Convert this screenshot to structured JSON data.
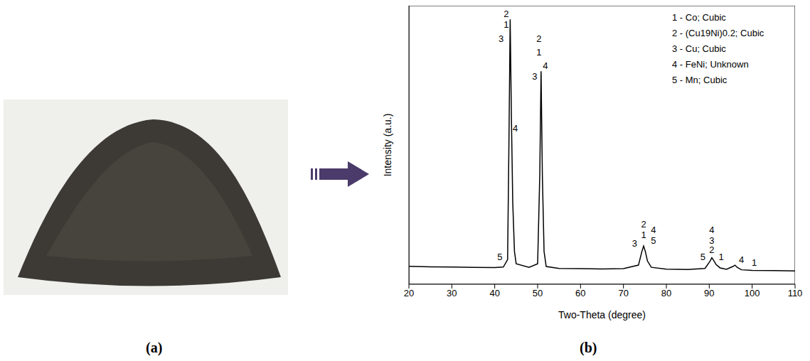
{
  "panel_labels": [
    "(a)",
    "(b)"
  ],
  "chart_data": {
    "type": "line",
    "x_label": "Two-Theta (degree)",
    "y_label": "Intensity (a.u.)",
    "x": [
      20,
      25,
      30,
      35,
      40,
      42,
      43,
      43.3,
      43.6,
      43.9,
      44.2,
      44.6,
      45,
      48,
      50,
      50.5,
      50.8,
      51.1,
      51.5,
      52,
      55,
      60,
      65,
      70,
      73.5,
      74.3,
      74.7,
      75.1,
      75.6,
      76.5,
      80,
      85,
      89,
      90.2,
      90.6,
      91,
      91.6,
      92.5,
      94,
      95.5,
      96,
      96.5,
      97.5,
      100,
      105,
      110
    ],
    "values": [
      0.066,
      0.064,
      0.063,
      0.062,
      0.061,
      0.063,
      0.09,
      0.5,
      0.97,
      0.6,
      0.3,
      0.12,
      0.075,
      0.062,
      0.075,
      0.4,
      0.78,
      0.4,
      0.12,
      0.065,
      0.058,
      0.057,
      0.056,
      0.057,
      0.07,
      0.12,
      0.14,
      0.12,
      0.085,
      0.062,
      0.055,
      0.054,
      0.058,
      0.085,
      0.097,
      0.088,
      0.072,
      0.06,
      0.055,
      0.065,
      0.07,
      0.062,
      0.053,
      0.051,
      0.05,
      0.049
    ],
    "color": "#000000",
    "xlim": [
      20,
      110
    ],
    "xticks": [
      20,
      30,
      40,
      50,
      60,
      70,
      80,
      90,
      100,
      110
    ],
    "ylim": [
      0,
      1.02
    ],
    "yticks": [],
    "tick_labels": "x",
    "legend": "upper right",
    "legend_entries": [
      "1 - Co; Cubic",
      "2 - (Cu19Ni)0.2; Cubic",
      "3 - Cu; Cubic",
      "4 - FeNi; Unknown",
      "5 - Mn; Cubic"
    ],
    "annotations": [
      {
        "text": "2",
        "x": 42.7,
        "y": 0.99
      },
      {
        "text": "1",
        "x": 42.7,
        "y": 0.95
      },
      {
        "text": "3",
        "x": 41.5,
        "y": 0.9
      },
      {
        "text": "4",
        "x": 44.8,
        "y": 0.57
      },
      {
        "text": "5",
        "x": 41.2,
        "y": 0.1
      },
      {
        "text": "2",
        "x": 50.3,
        "y": 0.9
      },
      {
        "text": "1",
        "x": 50.3,
        "y": 0.85
      },
      {
        "text": "3",
        "x": 49.3,
        "y": 0.76
      },
      {
        "text": "4",
        "x": 51.8,
        "y": 0.8
      },
      {
        "text": "2",
        "x": 74.7,
        "y": 0.22
      },
      {
        "text": "1",
        "x": 74.7,
        "y": 0.18
      },
      {
        "text": "3",
        "x": 72.6,
        "y": 0.15
      },
      {
        "text": "4",
        "x": 77,
        "y": 0.2
      },
      {
        "text": "5",
        "x": 77,
        "y": 0.16
      },
      {
        "text": "4",
        "x": 90.6,
        "y": 0.2
      },
      {
        "text": "3",
        "x": 90.6,
        "y": 0.16
      },
      {
        "text": "2",
        "x": 90.6,
        "y": 0.125
      },
      {
        "text": "5",
        "x": 88.5,
        "y": 0.1
      },
      {
        "text": "1",
        "x": 92.8,
        "y": 0.1
      },
      {
        "text": "4",
        "x": 97.5,
        "y": 0.09
      },
      {
        "text": "1",
        "x": 100.5,
        "y": 0.08
      }
    ]
  }
}
